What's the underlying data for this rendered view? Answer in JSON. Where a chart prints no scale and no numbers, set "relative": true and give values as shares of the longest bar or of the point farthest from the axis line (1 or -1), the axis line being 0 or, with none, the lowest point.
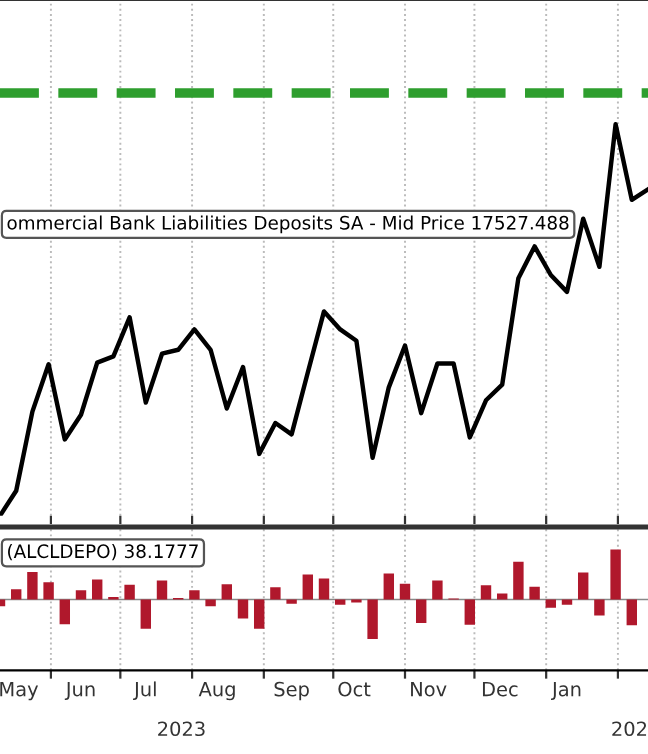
{
  "chart_data": [
    {
      "type": "line",
      "relative": true,
      "tick_labels": false,
      "grid": "x",
      "x": [
        "2023-05-10",
        "2023-05-17",
        "2023-05-24",
        "2023-05-31",
        "2023-06-07",
        "2023-06-14",
        "2023-06-21",
        "2023-06-28",
        "2023-07-05",
        "2023-07-12",
        "2023-07-19",
        "2023-07-26",
        "2023-08-02",
        "2023-08-09",
        "2023-08-16",
        "2023-08-23",
        "2023-08-30",
        "2023-09-06",
        "2023-09-13",
        "2023-09-20",
        "2023-09-27",
        "2023-10-04",
        "2023-10-11",
        "2023-10-18",
        "2023-10-25",
        "2023-11-01",
        "2023-11-08",
        "2023-11-15",
        "2023-11-22",
        "2023-11-29",
        "2023-12-06",
        "2023-12-13",
        "2023-12-20",
        "2023-12-27",
        "2024-01-03",
        "2024-01-10",
        "2024-01-17",
        "2024-01-24",
        "2024-01-31",
        "2024-02-07",
        "2024-02-14"
      ],
      "xlim": [
        "2023-05-10",
        "2024-02-14"
      ],
      "xticks": [
        {
          "value": "2023-06-01",
          "label": null
        },
        {
          "value": "2023-07-01",
          "label": null
        },
        {
          "value": "2023-08-01",
          "label": null
        },
        {
          "value": "2023-09-01",
          "label": null
        },
        {
          "value": "2023-10-01",
          "label": null
        },
        {
          "value": "2023-11-01",
          "label": null
        },
        {
          "value": "2023-12-01",
          "label": null
        },
        {
          "value": "2024-01-01",
          "label": null
        },
        {
          "value": "2024-02-01",
          "label": null
        }
      ],
      "series": [
        {
          "color": "#000000",
          "values": [
            0,
            0.064,
            0.266,
            0.387,
            0.195,
            0.258,
            0.391,
            0.407,
            0.507,
            0.289,
            0.414,
            0.424,
            0.476,
            0.424,
            0.274,
            0.38,
            0.158,
            0.237,
            0.208,
            0.366,
            0.522,
            0.476,
            0.447,
            0.148,
            0.328,
            0.435,
            0.262,
            0.389,
            0.389,
            0.2,
            0.295,
            0.335,
            0.607,
            0.688,
            0.615,
            0.572,
            0.759,
            0.636,
            1,
            0.807,
            0.834
          ]
        }
      ],
      "ref_lines": [
        {
          "axis": "y",
          "value": 1.08,
          "color": "#2e9e2e",
          "line_style": "dashed"
        }
      ],
      "annotations": [
        "ommercial Bank Liabilities Deposits SA - Mid Price 17527.488"
      ]
    },
    {
      "type": "bar",
      "relative": true,
      "tick_labels": "x",
      "grid": "x",
      "x": [
        "2023-05-10",
        "2023-05-17",
        "2023-05-24",
        "2023-05-31",
        "2023-06-07",
        "2023-06-14",
        "2023-06-21",
        "2023-06-28",
        "2023-07-05",
        "2023-07-12",
        "2023-07-19",
        "2023-07-26",
        "2023-08-02",
        "2023-08-09",
        "2023-08-16",
        "2023-08-23",
        "2023-08-30",
        "2023-09-06",
        "2023-09-13",
        "2023-09-20",
        "2023-09-27",
        "2023-10-04",
        "2023-10-11",
        "2023-10-18",
        "2023-10-25",
        "2023-11-01",
        "2023-11-08",
        "2023-11-15",
        "2023-11-22",
        "2023-11-29",
        "2023-12-06",
        "2023-12-13",
        "2023-12-20",
        "2023-12-27",
        "2024-01-03",
        "2024-01-10",
        "2024-01-17",
        "2024-01-24",
        "2024-01-31",
        "2024-02-07"
      ],
      "xlim": [
        "2023-05-10",
        "2024-02-14"
      ],
      "xticks": [
        {
          "value": "2023-05-18",
          "label": "May"
        },
        {
          "value": "2023-06-01",
          "label": null
        },
        {
          "value": "2023-06-14",
          "label": "Jun"
        },
        {
          "value": "2023-07-01",
          "label": null
        },
        {
          "value": "2023-07-12",
          "label": "Jul"
        },
        {
          "value": "2023-08-01",
          "label": null
        },
        {
          "value": "2023-08-12",
          "label": "Aug"
        },
        {
          "value": "2023-09-01",
          "label": null
        },
        {
          "value": "2023-09-13",
          "label": "Sep"
        },
        {
          "value": "2023-10-01",
          "label": null
        },
        {
          "value": "2023-10-10",
          "label": "Oct"
        },
        {
          "value": "2023-11-01",
          "label": null
        },
        {
          "value": "2023-11-11",
          "label": "Nov"
        },
        {
          "value": "2023-12-01",
          "label": null
        },
        {
          "value": "2023-12-12",
          "label": "Dec"
        },
        {
          "value": "2024-01-01",
          "label": null
        },
        {
          "value": "2024-01-10",
          "label": "Jan"
        },
        {
          "value": "2024-02-01",
          "label": null
        }
      ],
      "series": [
        {
          "color": "#b0182c",
          "values": [
            -0.133,
            0.204,
            0.551,
            0.347,
            -0.49,
            0.184,
            0.398,
            0.051,
            0.296,
            -0.582,
            0.378,
            0.031,
            0.184,
            -0.133,
            0.306,
            -0.378,
            -0.582,
            0.245,
            -0.082,
            0.5,
            0.418,
            -0.102,
            -0.061,
            -0.786,
            0.52,
            0.316,
            -0.469,
            0.378,
            0.02,
            -0.5,
            0.286,
            0.122,
            0.755,
            0.255,
            -0.163,
            -0.102,
            0.541,
            -0.316,
            1,
            -0.51
          ]
        }
      ],
      "annotations": [
        "(ALCLDEPO) 38.1777",
        "2023",
        "202"
      ]
    }
  ]
}
